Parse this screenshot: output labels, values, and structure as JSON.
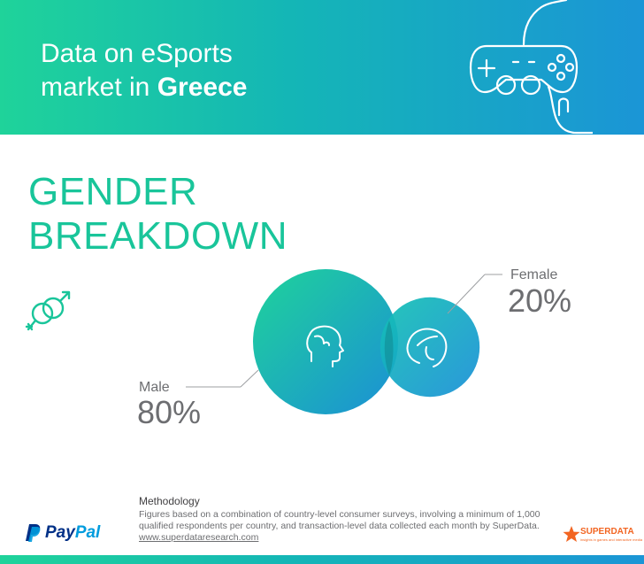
{
  "header": {
    "title_line1": "Data on eSports",
    "title_line2_prefix": "market in ",
    "title_line2_country": "Greece",
    "icon": "game-controller-icon"
  },
  "section": {
    "title_line1": "GENDER",
    "title_line2": "BREAKDOWN",
    "icon": "gender-symbols-icon"
  },
  "chart_data": {
    "type": "bubble",
    "title": "GENDER BREAKDOWN",
    "series": [
      {
        "name": "Male",
        "label": "Male",
        "value": 80,
        "display": "80%",
        "icon": "male-head-icon"
      },
      {
        "name": "Female",
        "label": "Female",
        "value": 20,
        "display": "20%",
        "icon": "female-head-icon"
      }
    ],
    "colors": {
      "start": "#1fd39a",
      "end": "#1b8fd6"
    }
  },
  "methodology": {
    "title": "Methodology",
    "text": "Figures based on a combination of country-level consumer surveys, involving a minimum of 1,000 qualified respondents per country, and transaction-level data collected each month by SuperData.",
    "url": "www.superdataresearch.com"
  },
  "logos": {
    "paypal_pay": "Pay",
    "paypal_pal": "Pal",
    "superdata_name": "SUPERDATA",
    "superdata_tagline": "insights in games and interactive media"
  },
  "colors": {
    "accent_green": "#19c59a",
    "accent_blue": "#1b95d6",
    "text_gray": "#6d6e71"
  }
}
